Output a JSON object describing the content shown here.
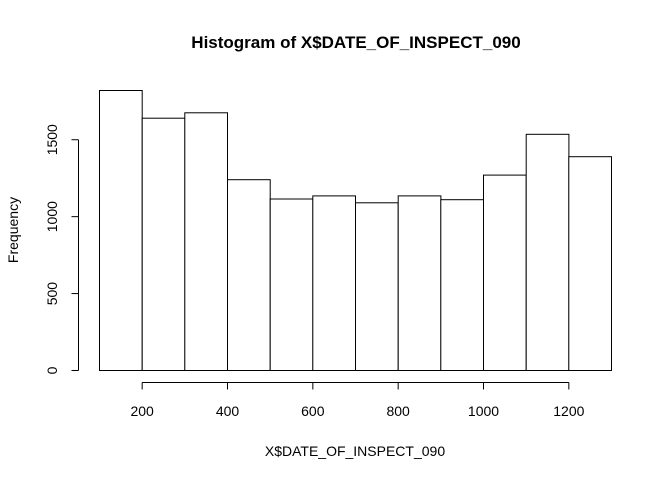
{
  "chart_data": {
    "type": "bar",
    "title": "Histogram of X$DATE_OF_INSPECT_090",
    "xlabel": "X$DATE_OF_INSPECT_090",
    "ylabel": "Frequency",
    "bins": [
      {
        "start": 100,
        "end": 200,
        "count": 1820
      },
      {
        "start": 200,
        "end": 300,
        "count": 1640
      },
      {
        "start": 300,
        "end": 400,
        "count": 1675
      },
      {
        "start": 400,
        "end": 500,
        "count": 1240
      },
      {
        "start": 500,
        "end": 600,
        "count": 1115
      },
      {
        "start": 600,
        "end": 700,
        "count": 1135
      },
      {
        "start": 700,
        "end": 800,
        "count": 1090
      },
      {
        "start": 800,
        "end": 900,
        "count": 1135
      },
      {
        "start": 900,
        "end": 1000,
        "count": 1110
      },
      {
        "start": 1000,
        "end": 1100,
        "count": 1270
      },
      {
        "start": 1100,
        "end": 1200,
        "count": 1535
      },
      {
        "start": 1200,
        "end": 1300,
        "count": 1390
      }
    ],
    "xlim": [
      100,
      1300
    ],
    "ylim": [
      0,
      1820
    ],
    "x_ticks": [
      200,
      400,
      600,
      800,
      1000,
      1200
    ],
    "y_ticks": [
      0,
      500,
      1000,
      1500
    ],
    "grid": false,
    "legend": "none",
    "bar_fill": "#ffffff",
    "bar_stroke": "#000000"
  }
}
